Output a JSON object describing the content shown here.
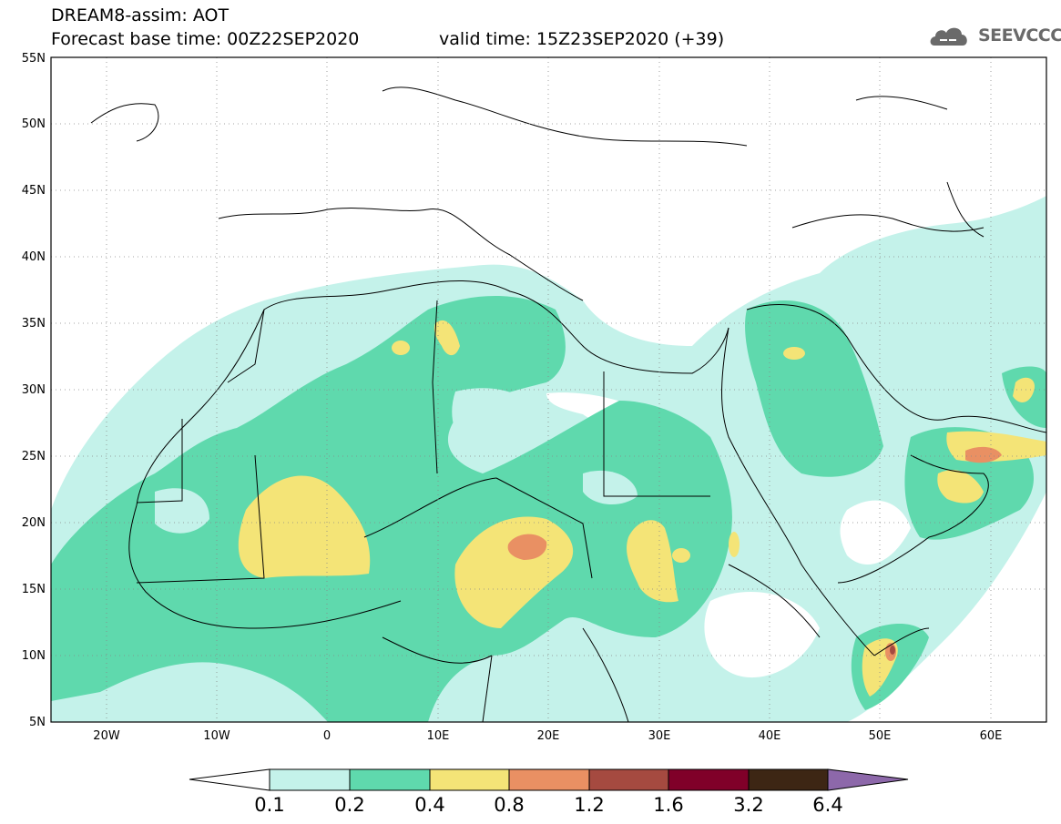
{
  "header": {
    "title": "DREAM8-assim: AOT",
    "base_time": "Forecast base time: 00Z22SEP2020",
    "valid_time": "valid time: 15Z23SEP2020 (+39)",
    "logo_text": "SEEVCCC"
  },
  "map": {
    "lon_range": [
      -25,
      65
    ],
    "lat_range": [
      5,
      55
    ],
    "lat_ticks": [
      "5N",
      "10N",
      "15N",
      "20N",
      "25N",
      "30N",
      "35N",
      "40N",
      "45N",
      "50N",
      "55N"
    ],
    "lon_ticks": [
      "20W",
      "10W",
      "0",
      "10E",
      "20E",
      "30E",
      "40E",
      "50E",
      "60E"
    ],
    "gridlines": "dotted"
  },
  "colorbar": {
    "labels": [
      "0.1",
      "0.2",
      "0.4",
      "0.8",
      "1.2",
      "1.6",
      "3.2",
      "6.4"
    ],
    "colors": [
      "#c4f2ea",
      "#5fd9ad",
      "#f4e477",
      "#e99063",
      "#a54a40",
      "#800029",
      "#3d2614",
      "#8d68aa"
    ]
  }
}
